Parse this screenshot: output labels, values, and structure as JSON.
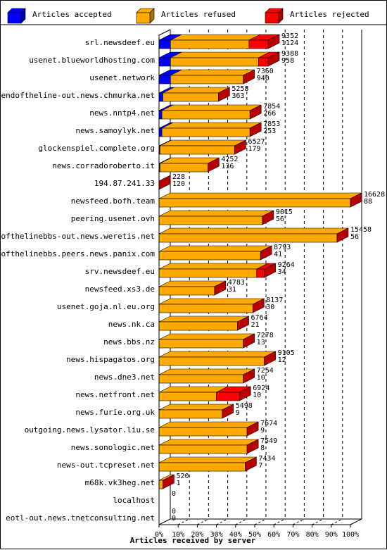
{
  "chart_data": {
    "type": "bar",
    "orientation": "horizontal",
    "stacked": true,
    "title": "",
    "xlabel": "Articles received by server",
    "ylabel": "",
    "xlim": [
      0,
      100
    ],
    "x_ticks": [
      "0%",
      "10%",
      "20%",
      "30%",
      "40%",
      "50%",
      "60%",
      "70%",
      "80%",
      "90%",
      "100%"
    ],
    "grid": "vertical-dashed",
    "legend_position": "top",
    "series": [
      {
        "name": "Articles accepted",
        "color": "#0000ff"
      },
      {
        "name": "Articles refused",
        "color": "#ffaa00"
      },
      {
        "name": "Articles rejected",
        "color": "#ff0000"
      }
    ],
    "rows": [
      {
        "server": "srl.newsdeef.eu",
        "total": "9352",
        "rejected": "1124",
        "pct": [
          6,
          41,
          10
        ]
      },
      {
        "server": "usenet.blueworldhosting.com",
        "total": "9388",
        "rejected": "958",
        "pct": [
          6,
          46,
          5
        ]
      },
      {
        "server": "usenet.network",
        "total": "7350",
        "rejected": "940",
        "pct": [
          6,
          38,
          0
        ]
      },
      {
        "server": "endoftheline-out.news.chmurka.net",
        "total": "5258",
        "rejected": "363",
        "pct": [
          2,
          29,
          0
        ]
      },
      {
        "server": "news.nntp4.net",
        "total": "7854",
        "rejected": "266",
        "pct": [
          1.5,
          46,
          0
        ]
      },
      {
        "server": "news.samoylyk.net",
        "total": "7853",
        "rejected": "253",
        "pct": [
          1.5,
          46,
          0
        ]
      },
      {
        "server": "glockenspiel.complete.org",
        "total": "6527",
        "rejected": "179",
        "pct": [
          0.5,
          39,
          0
        ]
      },
      {
        "server": "news.corradoroberto.it",
        "total": "4252",
        "rejected": "136",
        "pct": [
          0.5,
          25,
          0
        ]
      },
      {
        "server": "194.87.241.33",
        "total": "228",
        "rejected": "120",
        "pct": [
          0,
          0,
          0
        ]
      },
      {
        "server": "newsfeed.bofh.team",
        "total": "16628",
        "rejected": "88",
        "pct": [
          0,
          100,
          0
        ]
      },
      {
        "server": "peering.usenet.ovh",
        "total": "9015",
        "rejected": "56",
        "pct": [
          0,
          54,
          0
        ]
      },
      {
        "server": "endofthelinebbs-out.news.weretis.net",
        "total": "15458",
        "rejected": "56",
        "pct": [
          0,
          93,
          0
        ]
      },
      {
        "server": "endofthelinebbs.peers.news.panix.com",
        "total": "8793",
        "rejected": "41",
        "pct": [
          0,
          53,
          0
        ]
      },
      {
        "server": "srv.newsdeef.eu",
        "total": "9264",
        "rejected": "34",
        "pct": [
          0,
          51,
          4
        ]
      },
      {
        "server": "newsfeed.xs3.de",
        "total": "4783",
        "rejected": "31",
        "pct": [
          0,
          29,
          0
        ]
      },
      {
        "server": "usenet.goja.nl.eu.org",
        "total": "8137",
        "rejected": "30",
        "pct": [
          0,
          49,
          0
        ]
      },
      {
        "server": "news.nk.ca",
        "total": "6764",
        "rejected": "21",
        "pct": [
          0,
          41,
          0
        ]
      },
      {
        "server": "news.bbs.nz",
        "total": "7278",
        "rejected": "13",
        "pct": [
          0,
          44,
          0
        ]
      },
      {
        "server": "news.hispagatos.org",
        "total": "9105",
        "rejected": "12",
        "pct": [
          0,
          55,
          0
        ]
      },
      {
        "server": "news.dne3.net",
        "total": "7254",
        "rejected": "10",
        "pct": [
          0,
          44,
          0
        ]
      },
      {
        "server": "news.netfront.net",
        "total": "6924",
        "rejected": "10",
        "pct": [
          0,
          30,
          12
        ]
      },
      {
        "server": "news.furie.org.uk",
        "total": "5498",
        "rejected": "9",
        "pct": [
          0,
          33,
          0
        ]
      },
      {
        "server": "outgoing.news.lysator.liu.se",
        "total": "7674",
        "rejected": "9",
        "pct": [
          0,
          46,
          0
        ]
      },
      {
        "server": "news.sonologic.net",
        "total": "7549",
        "rejected": "8",
        "pct": [
          0,
          46,
          0
        ]
      },
      {
        "server": "news-out.tcpreset.net",
        "total": "7434",
        "rejected": "7",
        "pct": [
          0,
          45,
          0
        ]
      },
      {
        "server": "m68k.vk3heg.net",
        "total": "520",
        "rejected": "1",
        "pct": [
          0,
          2,
          0
        ]
      },
      {
        "server": "localhost",
        "total": "0",
        "rejected": "",
        "pct": [
          0,
          0,
          0
        ]
      },
      {
        "server": "eotl-out.news.tnetconsulting.net",
        "total": "0",
        "rejected": "0",
        "pct": [
          0,
          0,
          0
        ]
      }
    ]
  }
}
